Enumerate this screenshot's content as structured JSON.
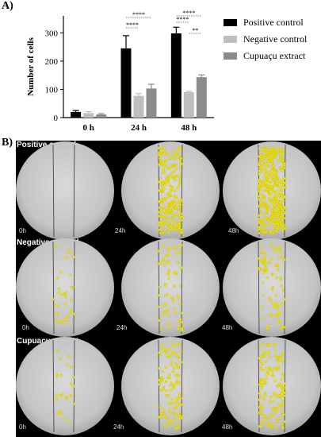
{
  "figure": {
    "panel_a_label": "A)",
    "panel_b_label": "B)"
  },
  "chart_data": {
    "type": "bar",
    "categories": [
      "0 h",
      "24 h",
      "48 h"
    ],
    "ylabel": "Number of cells",
    "xlabel": "",
    "ylim": [
      0,
      360
    ],
    "yticks": [
      0,
      100,
      200,
      300
    ],
    "series": [
      {
        "name": "Positive control",
        "color": "#000000",
        "values": [
          20,
          245,
          298
        ],
        "errors": [
          5,
          45,
          22
        ]
      },
      {
        "name": "Negative control",
        "color": "#bfbfbf",
        "values": [
          16,
          77,
          90
        ],
        "errors": [
          5,
          8,
          3
        ]
      },
      {
        "name": "Cupuaçu extract",
        "color": "#8c8c8c",
        "values": [
          11,
          103,
          143
        ],
        "errors": [
          3,
          15,
          8
        ]
      }
    ],
    "significance": [
      {
        "group": "24 h",
        "pair": [
          0,
          2
        ],
        "label": "****"
      },
      {
        "group": "24 h",
        "pair": [
          0,
          1
        ],
        "label": "****"
      },
      {
        "group": "48 h",
        "pair": [
          0,
          2
        ],
        "label": "****"
      },
      {
        "group": "48 h",
        "pair": [
          0,
          1
        ],
        "label": "****"
      },
      {
        "group": "48 h",
        "pair": [
          1,
          2
        ],
        "label": "**"
      }
    ],
    "legend_position": "right"
  },
  "micrographs": {
    "rows": [
      {
        "label": "Positive control",
        "times": [
          "0h",
          "24h",
          "48h"
        ],
        "density": [
          0,
          220,
          380
        ]
      },
      {
        "label": "Negative control",
        "times": [
          "0h",
          "24h",
          "48h"
        ],
        "density": [
          35,
          70,
          80
        ]
      },
      {
        "label": "Cupuaçu extract",
        "times": [
          "0h",
          "24h",
          "48h"
        ],
        "density": [
          25,
          110,
          140
        ]
      }
    ]
  }
}
